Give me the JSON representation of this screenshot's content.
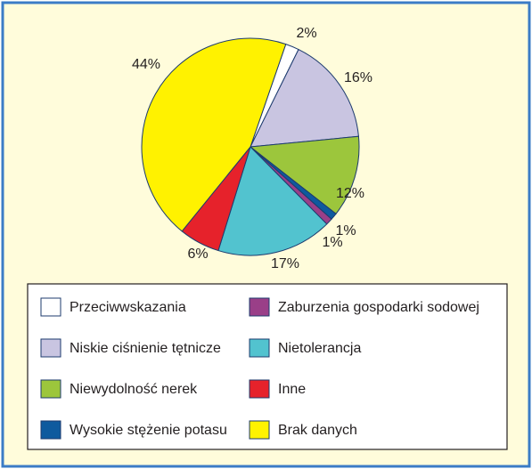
{
  "chart_data": {
    "type": "pie",
    "categories": [
      "Przeciwwskazania",
      "Niskie ciśnienie tętnicze",
      "Niewydolność nerek",
      "Wysokie stężenie potasu",
      "Zaburzenia gospodarki sodowej",
      "Nietolerancja",
      "Inne",
      "Brak danych"
    ],
    "values": [
      2,
      16,
      12,
      1,
      1,
      17,
      6,
      44
    ],
    "value_labels": [
      "2%",
      "16%",
      "12%",
      "1%",
      "1%",
      "17%",
      "6%",
      "44%"
    ],
    "colors": [
      "#ffffff",
      "#c9c5e1",
      "#9cc63c",
      "#0e5a9e",
      "#9a3f88",
      "#52c3cf",
      "#e6222b",
      "#fff200"
    ]
  }
}
